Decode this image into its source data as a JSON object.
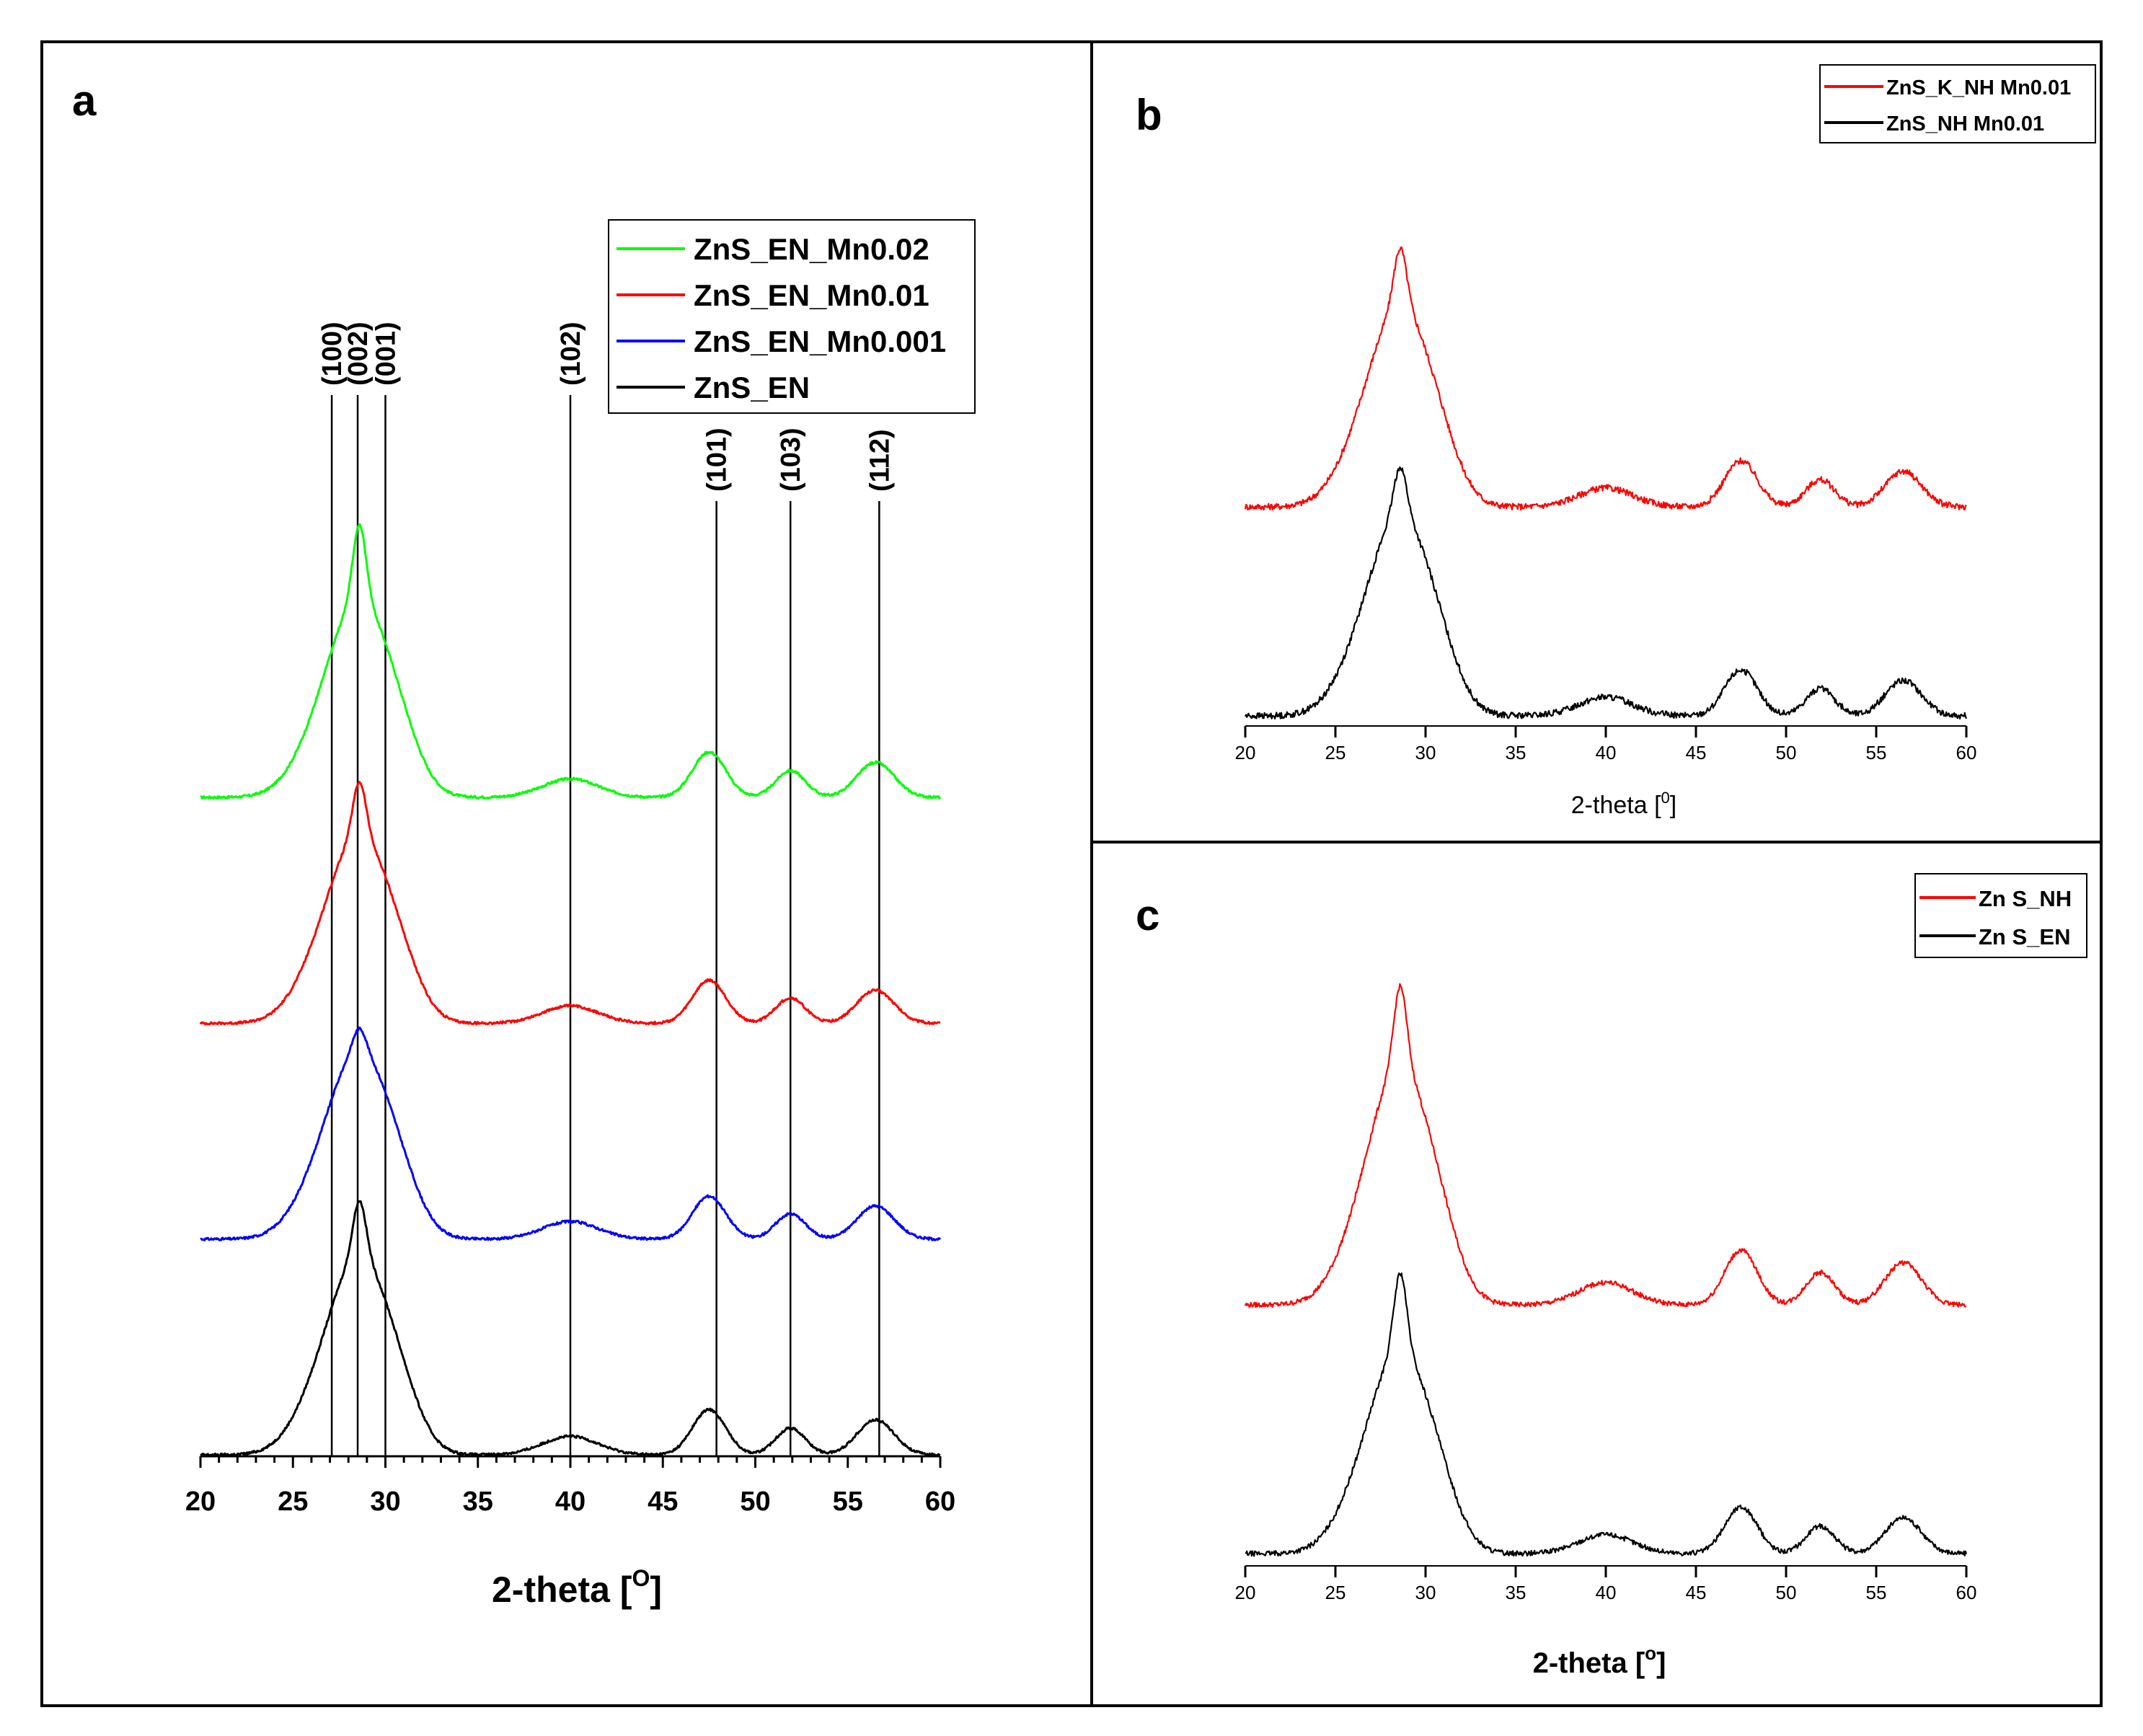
{
  "figure": {
    "panels": [
      "a",
      "b",
      "c"
    ]
  },
  "chart_data": [
    {
      "panel": "a",
      "type": "line",
      "title": "",
      "xlabel_main": "2-theta [",
      "xlabel_sup": "O",
      "xlabel_end": "]",
      "ylabel": "",
      "xlim": [
        20,
        60
      ],
      "xticks": [
        "20",
        "25",
        "30",
        "35",
        "40",
        "45",
        "50",
        "55",
        "60"
      ],
      "legend_position": "top-right",
      "series": [
        {
          "name": "ZnS_EN_Mn0.02",
          "color": "#00ff00",
          "offset": 3.2,
          "sharp": 0.8,
          "height": 1.0
        },
        {
          "name": "ZnS_EN_Mn0.01",
          "color": "#ff0000",
          "offset": 2.1,
          "sharp": 0.6,
          "height": 0.95
        },
        {
          "name": "ZnS_EN_Mn0.001",
          "color": "#0000ff",
          "offset": 1.05,
          "sharp": 0.25,
          "height": 0.95
        },
        {
          "name": "ZnS_EN",
          "color": "#000000",
          "offset": 0.0,
          "sharp": 0.6,
          "height": 1.0
        }
      ],
      "reference_lines": [
        {
          "label": "(100)",
          "x": 27.1
        },
        {
          "label": "(002)",
          "x": 28.5
        },
        {
          "label": "(001)",
          "x": 30.0
        },
        {
          "label": "(102)",
          "x": 40.0
        },
        {
          "label": "(101)",
          "x": 47.9
        },
        {
          "label": "(103)",
          "x": 51.9
        },
        {
          "label": "(112)",
          "x": 56.7
        }
      ]
    },
    {
      "panel": "b",
      "type": "line",
      "xlabel_main": "2-theta [",
      "xlabel_sup": "0",
      "xlabel_end": "]",
      "xlim": [
        20,
        60
      ],
      "xticks": [
        "20",
        "25",
        "30",
        "35",
        "40",
        "45",
        "50",
        "55",
        "60"
      ],
      "legend_position": "top-right",
      "series": [
        {
          "name": "ZnS_K_NH Mn0.01",
          "color": "#ff0000",
          "offset": 1.0,
          "sharp": 0.6,
          "height": 1.0
        },
        {
          "name": "ZnS_NH Mn0.01",
          "color": "#000000",
          "offset": 0.0,
          "sharp": 0.5,
          "height": 1.0
        }
      ]
    },
    {
      "panel": "c",
      "type": "line",
      "xlabel_main": "2-theta [",
      "xlabel_sup": "o",
      "xlabel_end": "]",
      "xlim": [
        20,
        60
      ],
      "xticks": [
        "20",
        "25",
        "30",
        "35",
        "40",
        "45",
        "50",
        "55",
        "60"
      ],
      "legend_position": "top-right",
      "series": [
        {
          "name": "Zn S_NH",
          "color": "#ff0000",
          "offset": 1.0,
          "sharp": 0.7,
          "height": 1.0
        },
        {
          "name": "Zn S_EN",
          "color": "#000000",
          "offset": 0.0,
          "sharp": 0.8,
          "height": 0.85
        }
      ]
    }
  ]
}
